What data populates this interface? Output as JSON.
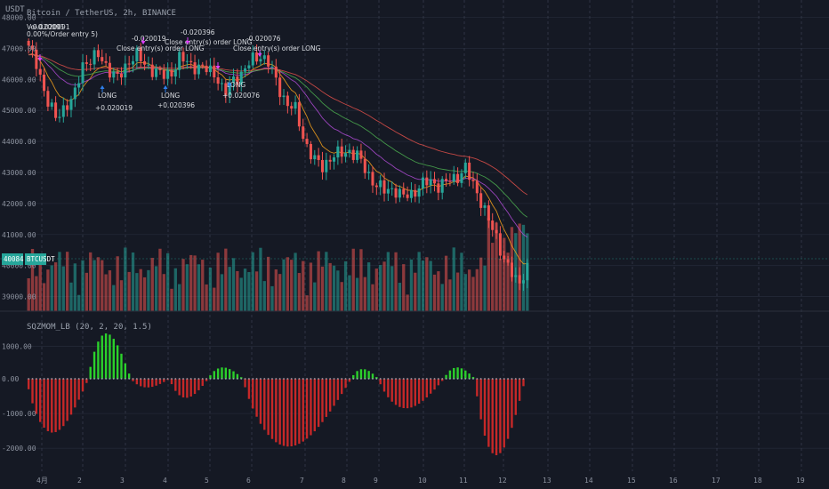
{
  "header": {
    "currency": "USDT",
    "symbol_line": "Bitcoin / TetherUS, 2h, BINANCE",
    "vol_label": "Vol",
    "vol_value": "-0.020091",
    "strategy_line": "0.00%/Order entry 5)"
  },
  "price_tag": {
    "value": "40084.23",
    "symbol": "BTCUSDT"
  },
  "indicator_title": "SQZMOM_LB (20, 2, 20, 1.5)",
  "colors": {
    "bg": "#151924",
    "grid": "#232836",
    "up": "#26a69a",
    "down": "#ef5350",
    "ema_orange": "#f7a21b",
    "ema_green": "#4caf50",
    "ema_purple": "#b04bd6",
    "ema_red": "#e0504a",
    "hist_green": "#2bd12b",
    "hist_red": "#c62828"
  },
  "annotations": [
    {
      "text": "-0.020091",
      "kind": "close"
    },
    {
      "text": "-0.020019",
      "kind": "close"
    },
    {
      "text": "Close entry(s) order LONG",
      "kind": "close"
    },
    {
      "text": "-0.020396",
      "kind": "close"
    },
    {
      "text": "Close entry(s) order LONG",
      "kind": "close"
    },
    {
      "text": "-0.020076",
      "kind": "close"
    },
    {
      "text": "Close entry(s) order LONG",
      "kind": "close"
    },
    {
      "text": "LONG",
      "kind": "entry"
    },
    {
      "text": "+0.020019",
      "kind": "entry"
    },
    {
      "text": "LONG",
      "kind": "entry"
    },
    {
      "text": "+0.020396",
      "kind": "entry"
    },
    {
      "text": "LONG",
      "kind": "entry"
    },
    {
      "text": "+0.020076",
      "kind": "entry"
    }
  ],
  "chart_data": [
    {
      "type": "candlestick",
      "title": "Bitcoin / TetherUS, 2h, BINANCE",
      "y_ticks": [
        48000,
        47000,
        46000,
        45000,
        44000,
        43000,
        42000,
        41000,
        40000,
        39000
      ],
      "y_tick_labels": [
        "48000.00",
        "47000.00",
        "46000.00",
        "45000.00",
        "44000.00",
        "43000.00",
        "42000.00",
        "41000.00",
        "40000.00",
        "39000.00"
      ],
      "ylim": [
        38300,
        48300
      ],
      "x_labels": [
        "4月",
        "2",
        "3",
        "4",
        "5",
        "6",
        "7",
        "8",
        "9",
        "10",
        "11",
        "12",
        "13",
        "14",
        "15",
        "16",
        "17",
        "18",
        "19"
      ],
      "close_path": [
        47000,
        46500,
        45300,
        44800,
        45100,
        45300,
        46500,
        46600,
        46800,
        46300,
        46000,
        46500,
        46800,
        46500,
        46300,
        46100,
        46200,
        46700,
        46500,
        46400,
        46300,
        46200,
        45500,
        46000,
        46200,
        46600,
        46800,
        46500,
        45800,
        45200,
        45000,
        44000,
        43400,
        43200,
        43500,
        43600,
        43700,
        43500,
        43000,
        42600,
        42400,
        42500,
        42200,
        42300,
        42600,
        42700,
        42600,
        42700,
        42800,
        43200,
        42500,
        42000,
        41200,
        40500,
        39900,
        39300,
        40084
      ]
    },
    {
      "type": "bar",
      "title": "SQZMOM_LB (20, 2, 20, 1.5)",
      "y_ticks": [
        1000,
        0,
        -1000,
        -2000
      ],
      "y_tick_labels": [
        "1000.00",
        "0.00",
        "-1000.00",
        "-2000.00"
      ],
      "ylim": [
        -2300,
        1600
      ],
      "segments": [
        {
          "sign": -1,
          "peak": 1550,
          "len": 16
        },
        {
          "sign": 1,
          "peak": 1400,
          "len": 11
        },
        {
          "sign": -1,
          "peak": 250,
          "len": 10
        },
        {
          "sign": -1,
          "peak": 550,
          "len": 10
        },
        {
          "sign": 1,
          "peak": 350,
          "len": 9
        },
        {
          "sign": -1,
          "peak": 1950,
          "len": 28
        },
        {
          "sign": 1,
          "peak": 300,
          "len": 7
        },
        {
          "sign": -1,
          "peak": 850,
          "len": 17
        },
        {
          "sign": 1,
          "peak": 350,
          "len": 8
        },
        {
          "sign": -1,
          "peak": 2200,
          "len": 13
        }
      ]
    }
  ]
}
